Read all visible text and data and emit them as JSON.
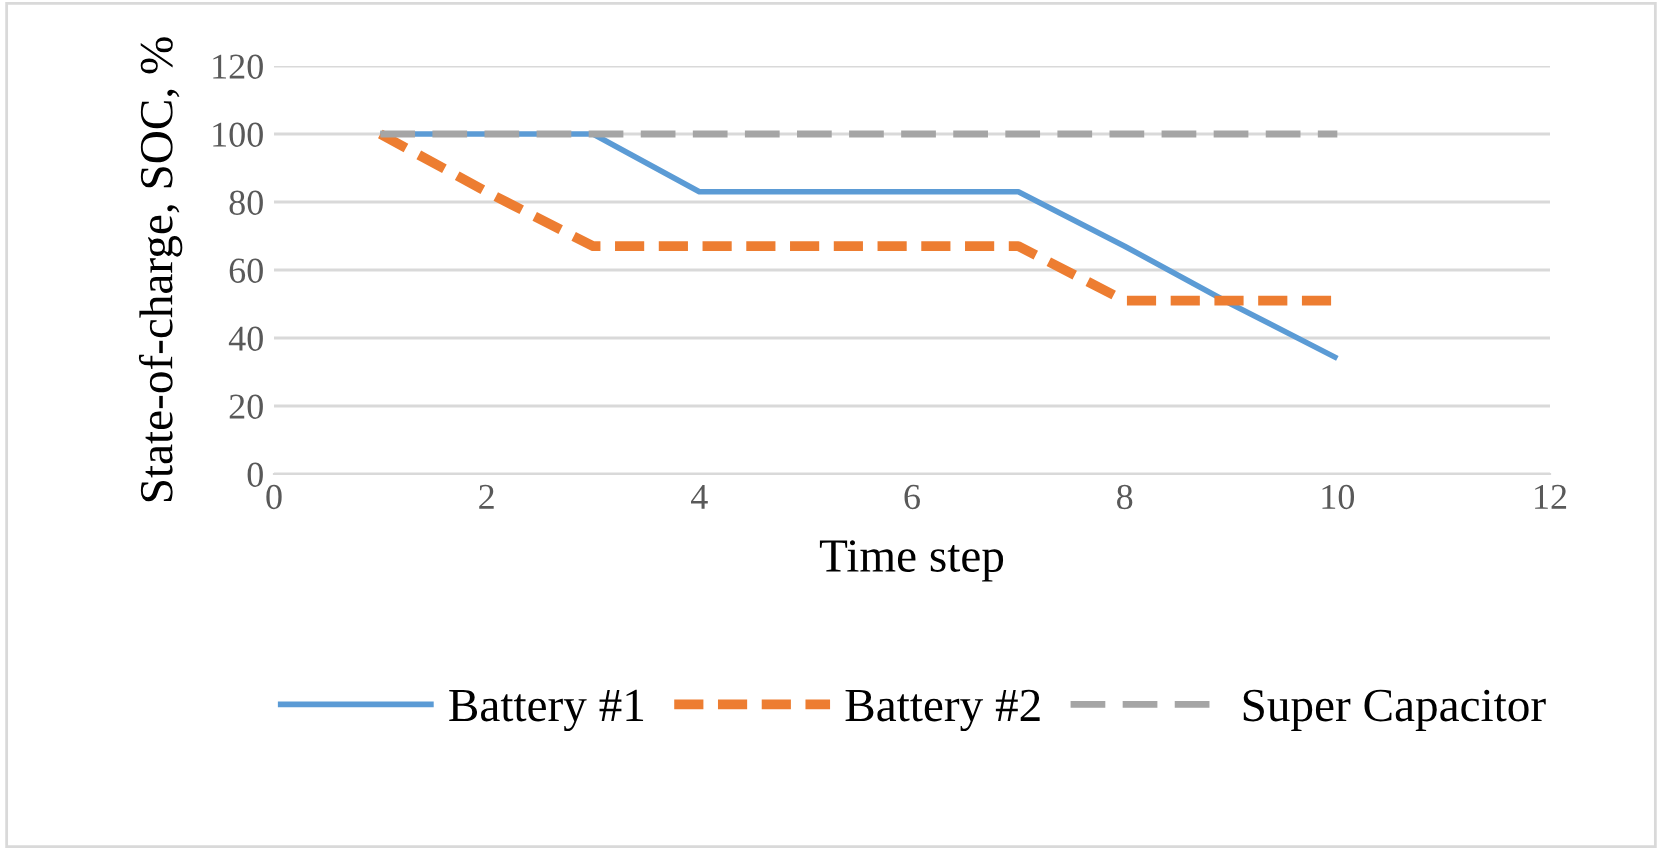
{
  "chart_data": {
    "type": "line",
    "xlabel": "Time step",
    "ylabel": "State-of-charge, SOC, %",
    "x": [
      1,
      2,
      3,
      4,
      5,
      6,
      7,
      8,
      9,
      10
    ],
    "series": [
      {
        "name": "Battery #1",
        "color": "#5b9bd5",
        "line_style": "solid",
        "values": [
          100,
          100,
          100,
          83,
          83,
          83,
          83,
          67,
          50,
          34
        ]
      },
      {
        "name": "Battery #2",
        "color": "#ed7d31",
        "line_style": "dashed",
        "values": [
          100,
          83,
          67,
          67,
          67,
          67,
          67,
          51,
          51,
          51
        ]
      },
      {
        "name": "Super Capacitor",
        "color": "#a5a5a5",
        "line_style": "dashed",
        "values": [
          100,
          100,
          100,
          100,
          100,
          100,
          100,
          100,
          100,
          100
        ]
      }
    ],
    "xlim": [
      0,
      12
    ],
    "xticks": [
      0,
      2,
      4,
      6,
      8,
      10,
      12
    ],
    "ylim": [
      0,
      120
    ],
    "yticks": [
      0,
      20,
      40,
      60,
      80,
      100,
      120
    ],
    "grid": "y",
    "legend": "bottom"
  }
}
